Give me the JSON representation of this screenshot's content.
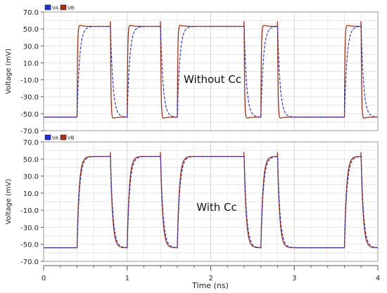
{
  "chart_data": [
    {
      "type": "line",
      "title": "",
      "xlabel": "",
      "ylabel": "Voltage (mV)",
      "annotation": "Without Cc",
      "xlim": [
        0,
        4
      ],
      "ylim": [
        -70,
        70
      ],
      "yticks": [
        70,
        50,
        30,
        10,
        -10,
        -30,
        -50,
        -70
      ],
      "ytick_labels": [
        "70.0",
        "50.0",
        "30.0",
        "10.0",
        "-10.0",
        "-30.0",
        "-50.0",
        "-70.0"
      ],
      "grid": true,
      "legend_position": "top-left",
      "pulse_windows_ns": [
        [
          0.4,
          0.8
        ],
        [
          1.0,
          1.4
        ],
        [
          1.6,
          2.4
        ],
        [
          2.6,
          2.8
        ],
        [
          3.6,
          3.8
        ]
      ],
      "low_level_mv": -54,
      "high_level_mv": 53,
      "series": [
        {
          "name": "VA",
          "color": "#1f2fd6",
          "dashed": true,
          "tau_rise_ns": 0.03,
          "tau_fall_ns": 0.03,
          "overshoot_mv": 0,
          "spike_mv": 0
        },
        {
          "name": "VB",
          "color": "#a83218",
          "dashed": false,
          "tau_rise_ns": 0.006,
          "tau_fall_ns": 0.006,
          "overshoot_mv": 4,
          "spike_mv": 6
        }
      ]
    },
    {
      "type": "line",
      "title": "",
      "xlabel": "Time (ns)",
      "ylabel": "Voltage (mV)",
      "annotation": "With Cc",
      "xlim": [
        0,
        4
      ],
      "ylim": [
        -70,
        70
      ],
      "xticks": [
        0,
        1,
        2,
        3,
        4
      ],
      "xtick_labels": [
        "0",
        "1",
        "2",
        "3",
        "4"
      ],
      "yticks": [
        70,
        50,
        30,
        10,
        -10,
        -30,
        -50,
        -70
      ],
      "ytick_labels": [
        "70.0",
        "50.0",
        "30.0",
        "10.0",
        "-10.0",
        "-30.0",
        "-50.0",
        "-70.0"
      ],
      "grid": true,
      "legend_position": "top-left",
      "pulse_windows_ns": [
        [
          0.4,
          0.8
        ],
        [
          1.0,
          1.4
        ],
        [
          1.6,
          2.4
        ],
        [
          2.6,
          2.8
        ],
        [
          3.6,
          3.8
        ]
      ],
      "low_level_mv": -54,
      "high_level_mv": 53,
      "series": [
        {
          "name": "VA",
          "color": "#1f2fd6",
          "dashed": true,
          "tau_rise_ns": 0.03,
          "tau_fall_ns": 0.03,
          "overshoot_mv": 0,
          "spike_mv": 0
        },
        {
          "name": "VB",
          "color": "#a83218",
          "dashed": false,
          "tau_rise_ns": 0.025,
          "tau_fall_ns": 0.025,
          "overshoot_mv": 0,
          "spike_mv": 5
        }
      ]
    }
  ]
}
